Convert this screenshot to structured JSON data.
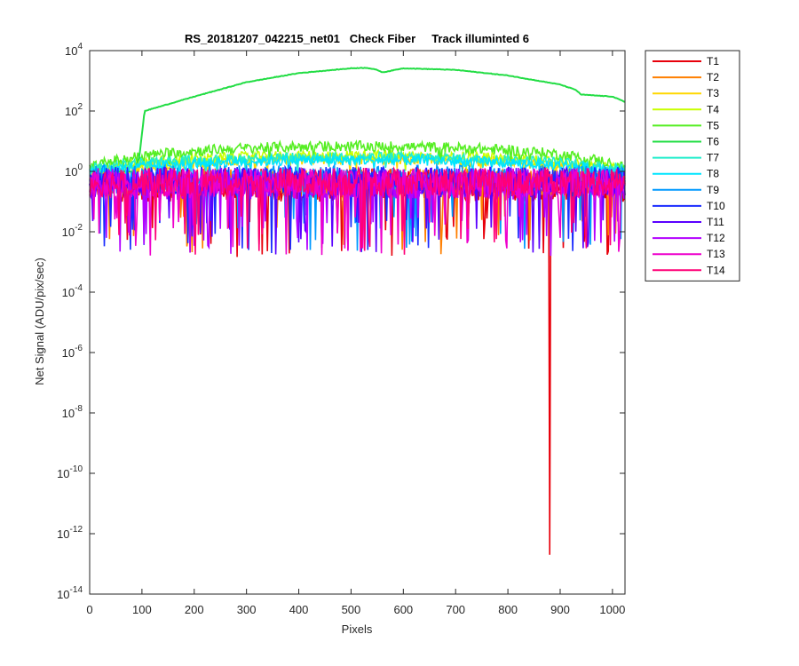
{
  "chart_data": {
    "type": "line",
    "title": "RS_20181207_042215_net01   Check Fiber     Track illuminted 6",
    "xlabel": "Pixels",
    "ylabel": "Net Signal (ADU/pix/sec)",
    "xlim": [
      0,
      1024
    ],
    "ylim": [
      1e-14,
      10000.0
    ],
    "yscale": "log",
    "xticks": [
      0,
      100,
      200,
      300,
      400,
      500,
      600,
      700,
      800,
      900,
      1000
    ],
    "xtick_labels": [
      "0",
      "100",
      "200",
      "300",
      "400",
      "500",
      "600",
      "700",
      "800",
      "900",
      "1000"
    ],
    "yticks": [
      {
        "base": "10",
        "exp": "4"
      },
      {
        "base": "10",
        "exp": "2"
      },
      {
        "base": "10",
        "exp": "0"
      },
      {
        "base": "10",
        "exp": "-2"
      },
      {
        "base": "10",
        "exp": "-4"
      },
      {
        "base": "10",
        "exp": "-6"
      },
      {
        "base": "10",
        "exp": "-8"
      },
      {
        "base": "10",
        "exp": "-10"
      },
      {
        "base": "10",
        "exp": "-12"
      },
      {
        "base": "10",
        "exp": "-14"
      }
    ],
    "grid": false,
    "legend_position": "outside-right",
    "series": [
      {
        "name": "T1",
        "color": "#e8000b",
        "kind": "noise",
        "level": 0.45,
        "spread": 1.1,
        "points": [
          [
            880,
            2e-13
          ]
        ]
      },
      {
        "name": "T2",
        "color": "#ff7f00",
        "kind": "noise",
        "level": 0.55,
        "spread": 0.9
      },
      {
        "name": "T3",
        "color": "#ffd700",
        "kind": "envelope",
        "peak": 3.0,
        "edge": 1.0
      },
      {
        "name": "T4",
        "color": "#c8ff00",
        "kind": "envelope",
        "peak": 4.0,
        "edge": 1.2
      },
      {
        "name": "T5",
        "color": "#55ee22",
        "kind": "envelope",
        "peak": 8.0,
        "edge": 1.5
      },
      {
        "name": "T6",
        "color": "#22dd44",
        "kind": "smooth",
        "x": [
          0,
          85,
          95,
          105,
          200,
          300,
          400,
          500,
          530,
          550,
          560,
          600,
          700,
          800,
          900,
          930,
          940,
          1000,
          1024
        ],
        "y": [
          1.0,
          1.0,
          3,
          100,
          300,
          900,
          1800,
          2600,
          2700,
          2300,
          1900,
          2600,
          2300,
          1500,
          750,
          500,
          350,
          300,
          200
        ]
      },
      {
        "name": "T7",
        "color": "#22eecc",
        "kind": "envelope",
        "peak": 3.5,
        "edge": 1.4
      },
      {
        "name": "T8",
        "color": "#00e5ff",
        "kind": "envelope",
        "peak": 2.8,
        "edge": 1.1
      },
      {
        "name": "T9",
        "color": "#0099ff",
        "kind": "noise",
        "level": 0.7,
        "spread": 0.9
      },
      {
        "name": "T10",
        "color": "#1a2bff",
        "kind": "noise",
        "level": 0.6,
        "spread": 0.95
      },
      {
        "name": "T11",
        "color": "#5a00ff",
        "kind": "noise",
        "level": 0.55,
        "spread": 1.0
      },
      {
        "name": "T12",
        "color": "#b300ff",
        "kind": "noise",
        "level": 0.5,
        "spread": 1.05
      },
      {
        "name": "T13",
        "color": "#ee00cc",
        "kind": "noise",
        "level": 0.5,
        "spread": 1.0
      },
      {
        "name": "T14",
        "color": "#ff0077",
        "kind": "noise",
        "level": 0.55,
        "spread": 0.95
      }
    ]
  }
}
